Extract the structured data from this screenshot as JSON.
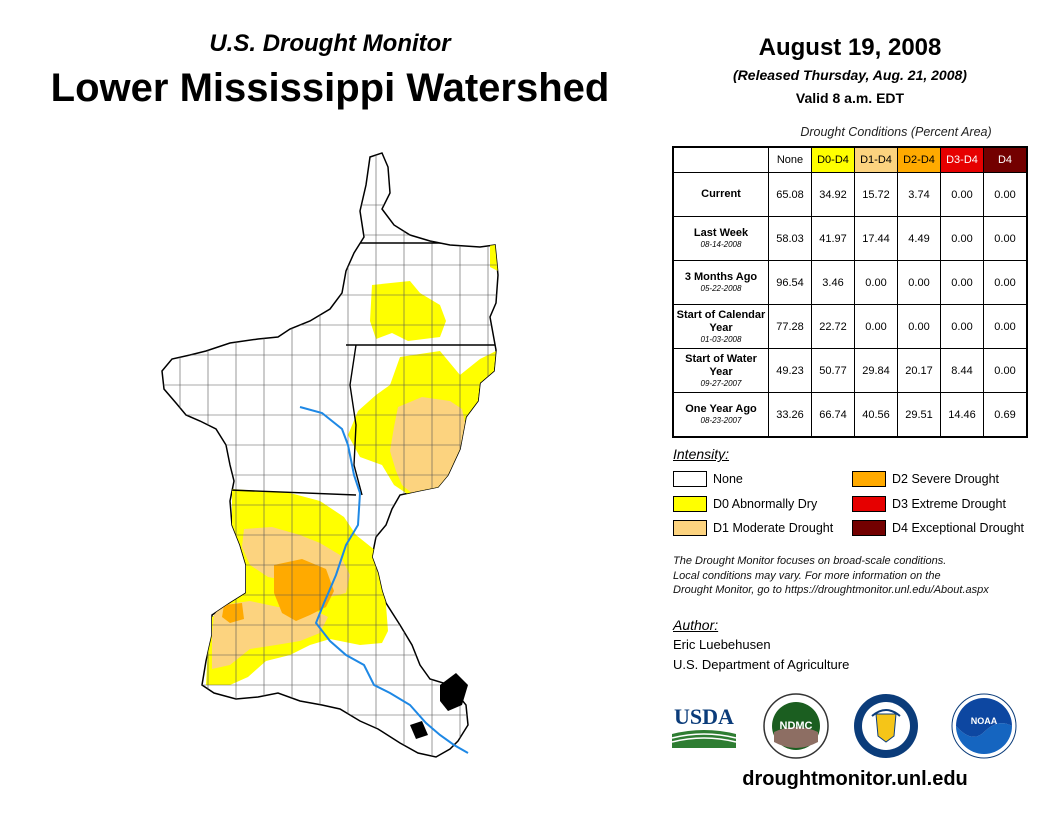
{
  "header": {
    "subtitle": "U.S. Drought Monitor",
    "title": "Lower Mississippi Watershed",
    "date": "August 19, 2008",
    "released": "(Released Thursday, Aug. 21, 2008)",
    "valid": "Valid 8 a.m. EDT"
  },
  "conditions_table": {
    "caption": "Drought Conditions (Percent Area)",
    "columns": [
      "None",
      "D0-D4",
      "D1-D4",
      "D2-D4",
      "D3-D4",
      "D4"
    ],
    "column_colors": [
      "#ffffff",
      "#ffff00",
      "#fcd37f",
      "#ffaa00",
      "#e60000",
      "#730000"
    ],
    "rows": [
      {
        "label": "Current",
        "date": "",
        "values": [
          "65.08",
          "34.92",
          "15.72",
          "3.74",
          "0.00",
          "0.00"
        ]
      },
      {
        "label": "Last Week",
        "date": "08-14-2008",
        "values": [
          "58.03",
          "41.97",
          "17.44",
          "4.49",
          "0.00",
          "0.00"
        ]
      },
      {
        "label": "3 Months Ago",
        "date": "05-22-2008",
        "values": [
          "96.54",
          "3.46",
          "0.00",
          "0.00",
          "0.00",
          "0.00"
        ]
      },
      {
        "label": "Start of Calendar Year",
        "date": "01-03-2008",
        "values": [
          "77.28",
          "22.72",
          "0.00",
          "0.00",
          "0.00",
          "0.00"
        ]
      },
      {
        "label": "Start of Water Year",
        "date": "09-27-2007",
        "values": [
          "49.23",
          "50.77",
          "29.84",
          "20.17",
          "8.44",
          "0.00"
        ]
      },
      {
        "label": "One Year Ago",
        "date": "08-23-2007",
        "values": [
          "33.26",
          "66.74",
          "40.56",
          "29.51",
          "14.46",
          "0.69"
        ]
      }
    ]
  },
  "legend": {
    "heading": "Intensity:",
    "items": [
      {
        "label": "None",
        "color": "#ffffff"
      },
      {
        "label": "D0 Abnormally Dry",
        "color": "#ffff00"
      },
      {
        "label": "D1 Moderate Drought",
        "color": "#fcd37f"
      },
      {
        "label": "D2 Severe Drought",
        "color": "#ffaa00"
      },
      {
        "label": "D3 Extreme Drought",
        "color": "#e60000"
      },
      {
        "label": "D4 Exceptional Drought",
        "color": "#730000"
      }
    ]
  },
  "note": {
    "line1": "The Drought Monitor focuses on broad-scale conditions.",
    "line2": "Local conditions may vary. For more information on the",
    "line3": "Drought Monitor, go to https://droughtmonitor.unl.edu/About.aspx"
  },
  "author": {
    "heading": "Author:",
    "name": "Eric Luebehusen",
    "organization": "U.S. Department of Agriculture"
  },
  "logos": {
    "usda": "USDA",
    "ndmc": "NDMC",
    "noaa": "NOAA"
  },
  "footer": {
    "website": "droughtmonitor.unl.edu"
  },
  "colors": {
    "none": "#ffffff",
    "d0": "#ffff00",
    "d1": "#fcd37f",
    "d2": "#ffaa00",
    "river": "#1e88e5"
  }
}
